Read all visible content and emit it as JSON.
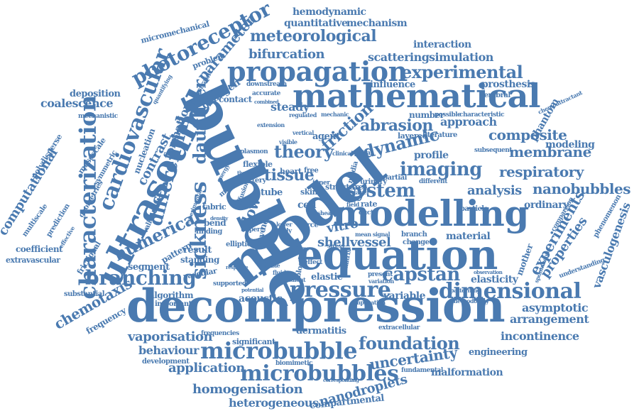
{
  "word_color": "#4a7ab0",
  "words": [
    "decompression",
    "bubble",
    "model",
    "equation",
    "modelling",
    "mathematical",
    "propagation",
    "ultrasound",
    "microbubble",
    "microbubbles",
    "pressure",
    "dimensional",
    "characterization",
    "cardiovascular",
    "sickness",
    "differential",
    "photoreceptor",
    "branching",
    "numerical",
    "system",
    "imaging",
    "capstan",
    "foundation",
    "experimental",
    "meteorological",
    "bifurcation",
    "parameter",
    "daughter",
    "computational",
    "membrane",
    "composite",
    "theory",
    "tissue",
    "dynamic",
    "abrasion",
    "friction",
    "nanobubbles",
    "respiratory",
    "analysis",
    "uncertainty",
    "homogenisation",
    "heterogeneous",
    "nanodroplets",
    "vaporisation",
    "behaviour",
    "application",
    "chemotaxis",
    "asymptotic",
    "arrangement",
    "incontinence",
    "coalescence",
    "hemodynamic",
    "quantitative",
    "mechanism",
    "scattering",
    "simulation",
    "interaction",
    "experiments",
    "properties",
    "vasculogenesis",
    "contrast",
    "formation",
    "flow",
    "shellvessel",
    "elasticity",
    "variable",
    "acoustic",
    "dermatitis",
    "malformation",
    "engineering",
    "steady",
    "approach",
    "profile",
    "modeling",
    "phantom",
    "prosthesis",
    "deposition",
    "influence",
    "cell",
    "vitro",
    "elastic",
    "material",
    "ordinary",
    "segment",
    "extravascular",
    "coefficient",
    "frequency",
    "algorithm",
    "important",
    "significant",
    "development",
    "substantial",
    "result",
    "standing",
    "pattern",
    "structure",
    "tube",
    "skin",
    "heart",
    "free",
    "agent",
    "noise",
    "wave",
    "bend",
    "fabric",
    "collagen",
    "contact",
    "nucleation",
    "mesoscale",
    "polydisperse",
    "multiscale",
    "prediction",
    "geometries",
    "symmetric",
    "mechanistic",
    "micromechanical",
    "problem",
    "constraint",
    "downstream",
    "accurate",
    "cerebral",
    "chemoattractant",
    "number",
    "possible",
    "characteristic",
    "subsequent",
    "comparison",
    "phenomenon",
    "mother",
    "understanding",
    "frictional",
    "validation",
    "experimental",
    "diffusion",
    "rate",
    "urinary",
    "layered",
    "literature",
    "particle",
    "mean signal",
    "branch",
    "change",
    "present",
    "variation",
    "patterning",
    "methodology",
    "implication",
    "fundamental",
    "extracellular",
    "biomimetic",
    "frequencies",
    "supported",
    "vascular",
    "elliptic",
    "partial",
    "media",
    "spatial",
    "clinical",
    "visible",
    "artery",
    "flexible",
    "inner",
    "layer",
    "force",
    "blood",
    "study",
    "finding",
    "mode",
    "energy",
    "plasmon",
    "extension",
    "regulated",
    "mechanic",
    "vertical",
    "duct",
    "different",
    "combined",
    "quantifying",
    "effective",
    "therapy",
    "matrix",
    "upper",
    "lower",
    "form",
    "gradient",
    "stress",
    "shear",
    "field",
    "density",
    "stable",
    "fluid",
    "effect",
    "compartmental",
    "corresponding",
    "spontaneous",
    "observation",
    "response",
    "potential"
  ]
}
